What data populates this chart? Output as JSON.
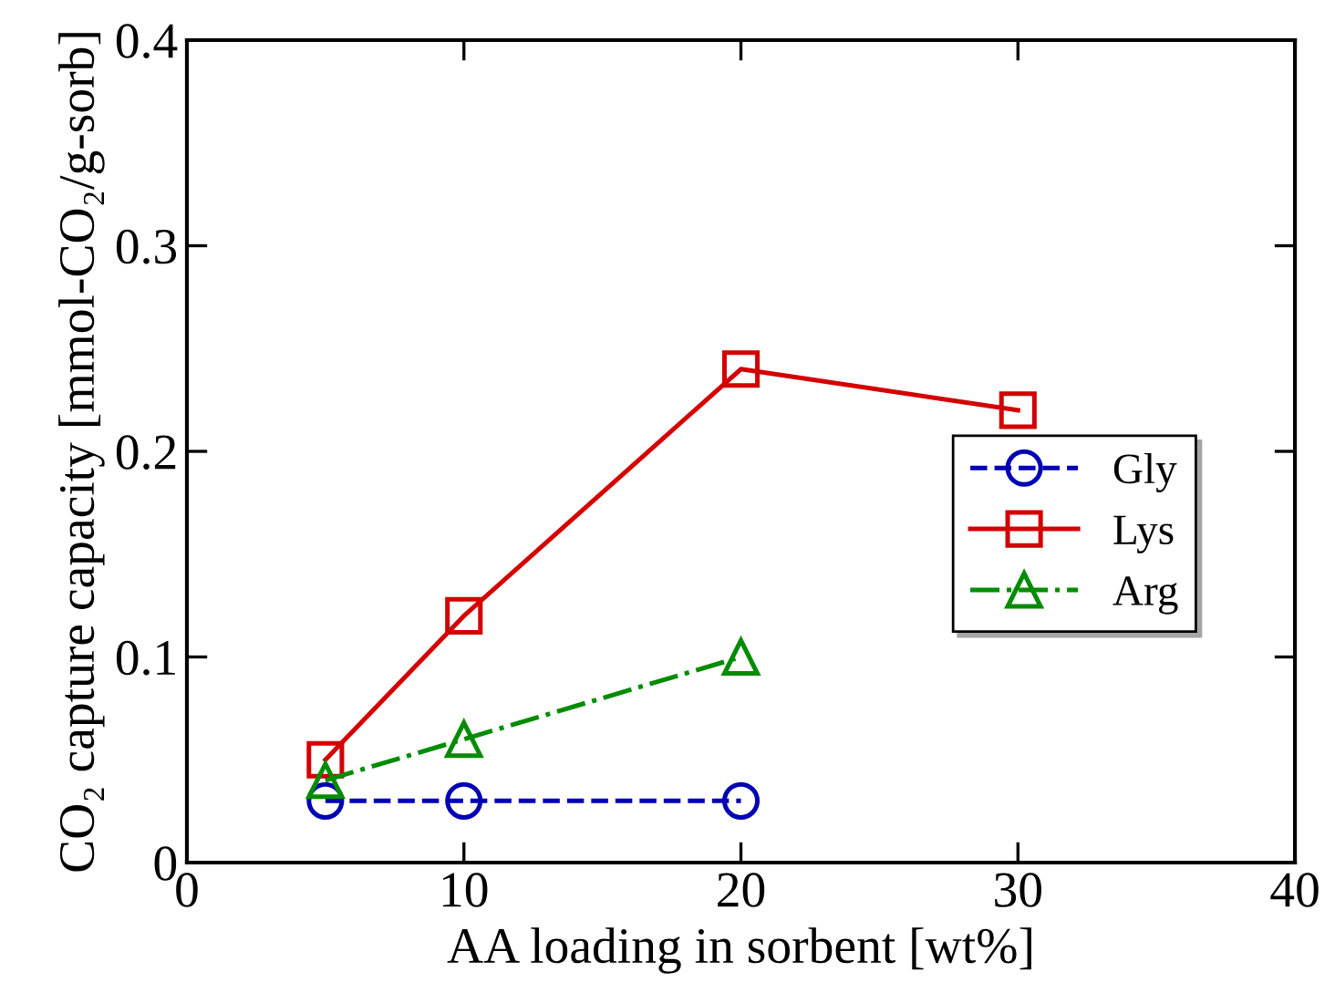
{
  "chart_data": {
    "type": "line",
    "xlabel": "AA loading in sorbent [wt%]",
    "ylabel": "CO₂ capture capacity [mmol-CO₂/g-sorb]",
    "xlim": [
      0,
      40
    ],
    "xticks": [
      0,
      10,
      20,
      30,
      40
    ],
    "ylim": [
      0,
      0.4
    ],
    "yticks": [
      0,
      0.1,
      0.2,
      0.3,
      0.4
    ],
    "grid": false,
    "legend": "right",
    "series": [
      {
        "name": "Gly",
        "color": "#0000b4",
        "x": [
          5,
          10,
          20
        ],
        "values": [
          0.03,
          0.03,
          0.03
        ],
        "marker": "circle",
        "line_style": "dashed"
      },
      {
        "name": "Lys",
        "color": "#d40000",
        "x": [
          5,
          10,
          20,
          30
        ],
        "values": [
          0.05,
          0.12,
          0.24,
          0.22
        ],
        "marker": "square",
        "line_style": "solid"
      },
      {
        "name": "Arg",
        "color": "#008c00",
        "x": [
          5,
          10,
          20
        ],
        "values": [
          0.04,
          0.06,
          0.1
        ],
        "marker": "triangle",
        "line_style": "dashdot"
      }
    ]
  }
}
